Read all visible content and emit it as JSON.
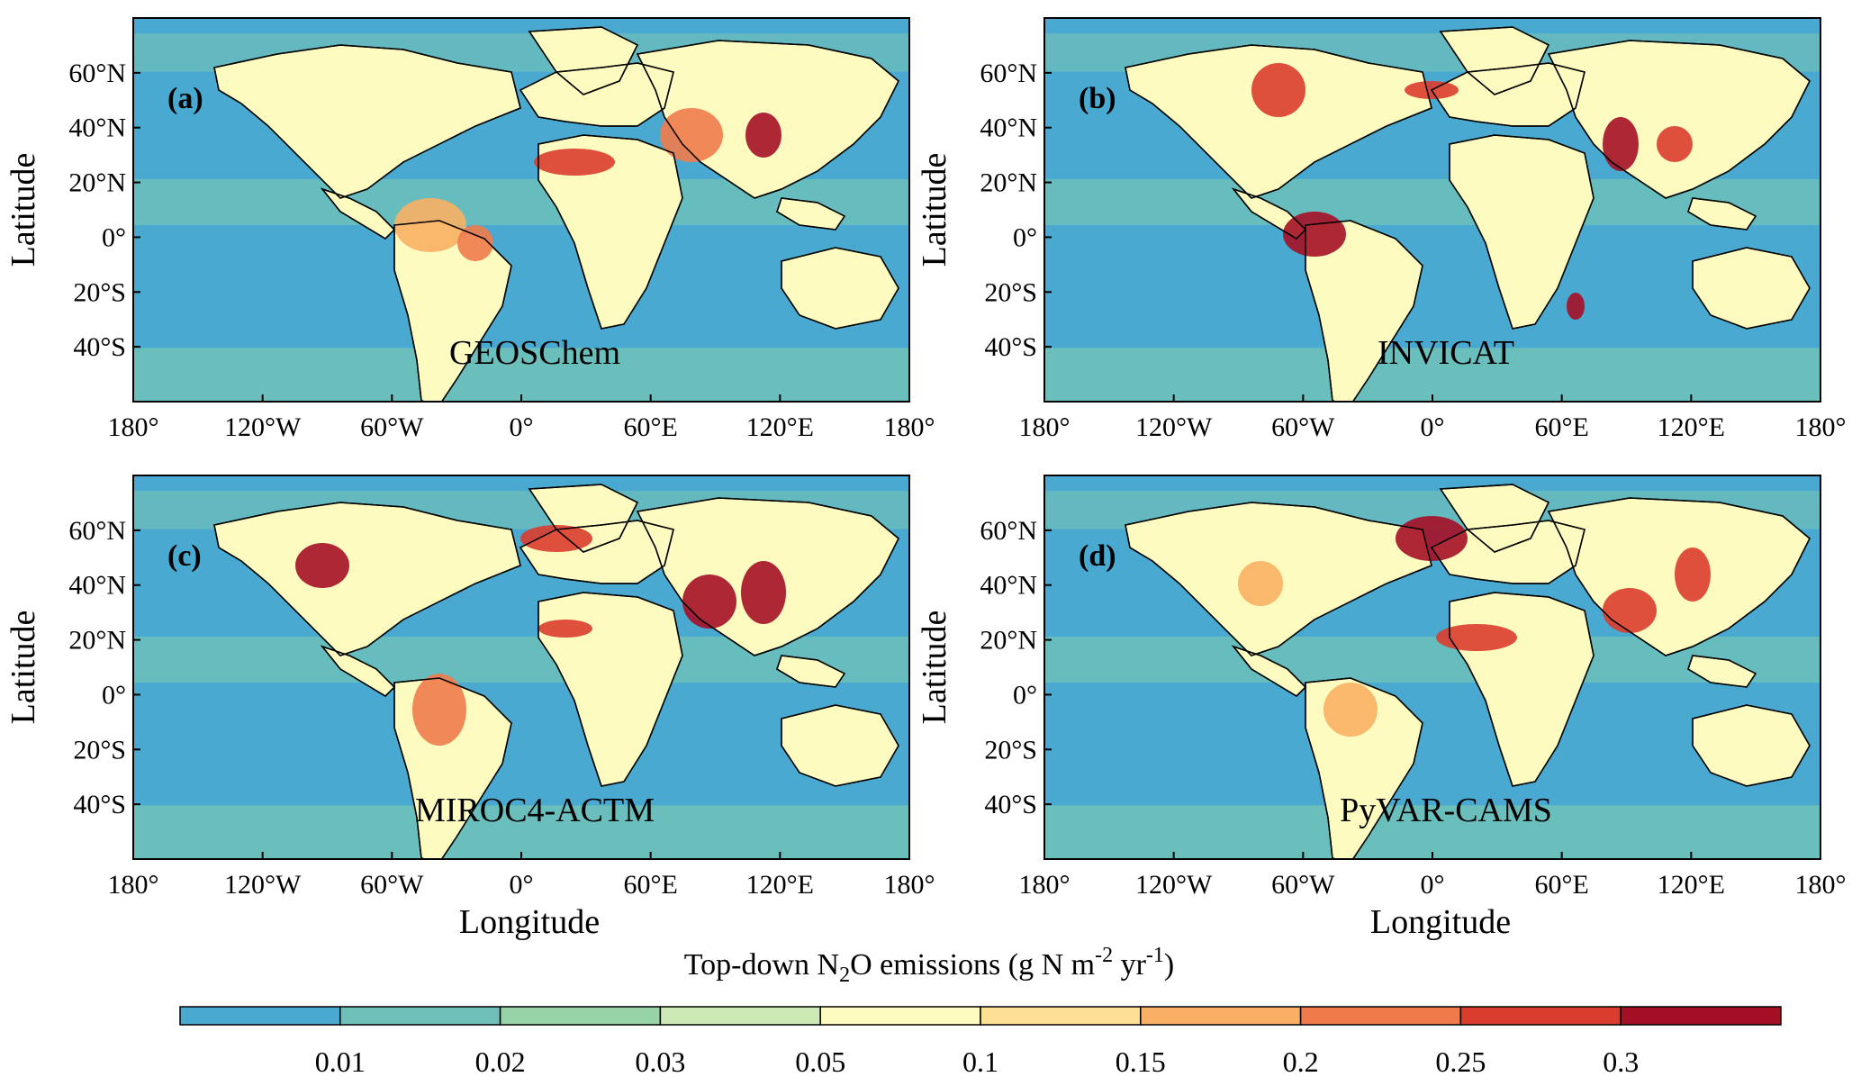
{
  "panels": [
    {
      "letter": "(a)",
      "model": "GEOSChem"
    },
    {
      "letter": "(b)",
      "model": "INVICAT"
    },
    {
      "letter": "(c)",
      "model": "MIROC4-ACTM"
    },
    {
      "letter": "(d)",
      "model": "PyVAR-CAMS"
    }
  ],
  "lat_ticks": [
    "60°N",
    "40°N",
    "20°N",
    "0°",
    "20°S",
    "40°S"
  ],
  "lon_ticks": [
    "180°",
    "120°W",
    "60°W",
    "0°",
    "60°E",
    "120°E",
    "180°"
  ],
  "ylabel": "Latitude",
  "xlabel": "Longitude",
  "colorbar": {
    "title_prefix": "Top-down N",
    "title_sub": "2",
    "title_mid": "O emissions (g N m",
    "title_sup1": "-2",
    "title_mid2": " yr",
    "title_sup2": "-1",
    "title_end": ")",
    "colors": [
      "#4aa9d0",
      "#6ec0b8",
      "#98d3a7",
      "#cde9b5",
      "#fdfbc0",
      "#fde093",
      "#f9b064",
      "#ef7b4b",
      "#da3d2e",
      "#a50f26"
    ],
    "tick_labels": [
      "0.01",
      "0.02",
      "0.03",
      "0.05",
      "0.1",
      "0.15",
      "0.2",
      "0.25",
      "0.3"
    ]
  }
}
